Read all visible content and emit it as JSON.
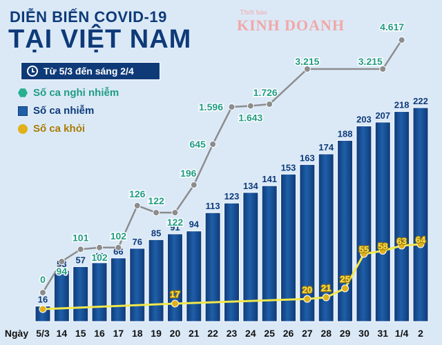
{
  "header": {
    "title_line1": "DIỄN BIẾN COVID-19",
    "title_line2": "TẠI VIỆT NAM",
    "date_range": "Từ 5/3 đến sáng 2/4"
  },
  "watermark": {
    "small": "Thời báo",
    "big": "KINH DOANH"
  },
  "legend": {
    "suspected": "Số ca nghi nhiễm",
    "infected": "Số ca nhiễm",
    "recovered": "Số ca khỏi"
  },
  "colors": {
    "bar": "#1f5fa8",
    "bar_dark": "#0e3a78",
    "suspected_line": "#8c8c8c",
    "suspected_text": "#1f9c82",
    "recovered_line": "#f2e84a",
    "recovered_dot": "#e0b11a",
    "background": "#dbe9f7"
  },
  "chart_data": {
    "type": "bar",
    "x_axis_title": "Ngày",
    "categories": [
      "5/3",
      "14",
      "15",
      "16",
      "17",
      "18",
      "19",
      "20",
      "21",
      "22",
      "23",
      "24",
      "25",
      "26",
      "27",
      "28",
      "29",
      "30",
      "31",
      "1/4",
      "2"
    ],
    "series": [
      {
        "name": "Số ca nhiễm",
        "type": "bar",
        "values": [
          16,
          53,
          57,
          61,
          66,
          76,
          85,
          91,
          94,
          113,
          123,
          134,
          141,
          153,
          163,
          174,
          188,
          203,
          207,
          218,
          222
        ],
        "labels": [
          "16",
          "53",
          "57",
          "61",
          "66",
          "76",
          "85",
          "91",
          "94",
          "113",
          "123",
          "134",
          "141",
          "153",
          "163",
          "174",
          "188",
          "203",
          "207",
          "218",
          "222"
        ]
      },
      {
        "name": "Số ca nghi nhiễm",
        "type": "line",
        "points": [
          {
            "cat": "5/3",
            "value": 0,
            "label": "0"
          },
          {
            "cat": "14",
            "value": 94,
            "label": "94"
          },
          {
            "cat": "15",
            "value": 101,
            "label": "101"
          },
          {
            "cat": "16",
            "value": 102,
            "label": "102"
          },
          {
            "cat": "17",
            "value": 102,
            "label": "102"
          },
          {
            "cat": "18",
            "value": 126,
            "label": "126"
          },
          {
            "cat": "19",
            "value": 122,
            "label": "122"
          },
          {
            "cat": "20",
            "value": 122,
            "label": "122"
          },
          {
            "cat": "21",
            "value": 196,
            "label": "196"
          },
          {
            "cat": "22",
            "value": 645,
            "label": "645"
          },
          {
            "cat": "23",
            "value": 1596,
            "label": "1.596"
          },
          {
            "cat": "24",
            "value": 1643,
            "label": "1.643"
          },
          {
            "cat": "25",
            "value": 1726,
            "label": "1.726"
          },
          {
            "cat": "27",
            "value": 3215,
            "label": "3.215"
          },
          {
            "cat": "31",
            "value": 3215,
            "label": "3.215"
          },
          {
            "cat": "1/4",
            "value": 4617,
            "label": "4.617"
          }
        ]
      },
      {
        "name": "Số ca khỏi",
        "type": "line",
        "points": [
          {
            "cat": "5/3",
            "value": 16,
            "label": "16"
          },
          {
            "cat": "20",
            "value": 17,
            "label": "17"
          },
          {
            "cat": "27",
            "value": 20,
            "label": "20"
          },
          {
            "cat": "28",
            "value": 21,
            "label": "21"
          },
          {
            "cat": "29",
            "value": 25,
            "label": "25"
          },
          {
            "cat": "30",
            "value": 55,
            "label": "55"
          },
          {
            "cat": "31",
            "value": 58,
            "label": "58"
          },
          {
            "cat": "1/4",
            "value": 63,
            "label": "63"
          },
          {
            "cat": "2",
            "value": 64,
            "label": "64"
          }
        ]
      }
    ]
  }
}
